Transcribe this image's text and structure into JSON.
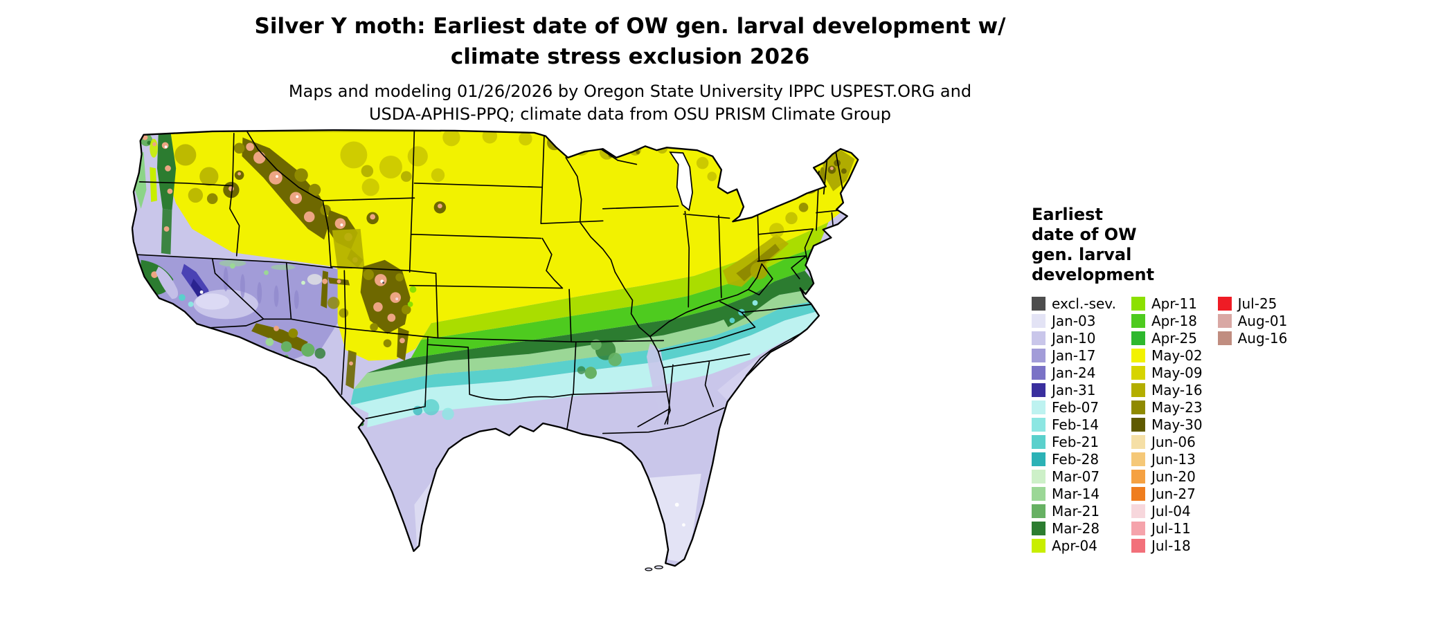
{
  "title": {
    "text": "Silver Y moth: Earliest date of OW gen. larval development w/\nclimate stress exclusion 2026"
  },
  "subtitle": {
    "text": "Maps and modeling 01/26/2026 by Oregon State University IPPC USPEST.ORG and\nUSDA-APHIS-PPQ; climate data from OSU PRISM Climate Group"
  },
  "map": {
    "region": "Continental United States (lower 48 states)",
    "background": "#ffffff",
    "state_border_color": "#000000",
    "water_color": "#ffffff"
  },
  "legend": {
    "title": "Earliest\ndate of OW\ngen. larval\ndevelopment",
    "columns": [
      {
        "entries": [
          {
            "label": "excl.-sev.",
            "color": "#4d4d4d"
          },
          {
            "label": "Jan-03",
            "color": "#e3e3f5"
          },
          {
            "label": "Jan-10",
            "color": "#c9c6ea"
          },
          {
            "label": "Jan-17",
            "color": "#a29cd8"
          },
          {
            "label": "Jan-24",
            "color": "#7a72c6"
          },
          {
            "label": "Jan-31",
            "color": "#3a2f9e"
          },
          {
            "label": "Feb-07",
            "color": "#bdf2f0"
          },
          {
            "label": "Feb-14",
            "color": "#8ce6e2"
          },
          {
            "label": "Feb-21",
            "color": "#5ad0cc"
          },
          {
            "label": "Feb-28",
            "color": "#2cb2b6"
          },
          {
            "label": "Mar-07",
            "color": "#cdf0c8"
          },
          {
            "label": "Mar-14",
            "color": "#9bd796"
          },
          {
            "label": "Mar-21",
            "color": "#67b163"
          },
          {
            "label": "Mar-28",
            "color": "#2c7c30"
          },
          {
            "label": "Apr-04",
            "color": "#c8ee00"
          }
        ]
      },
      {
        "entries": [
          {
            "label": "Apr-11",
            "color": "#8ce000"
          },
          {
            "label": "Apr-18",
            "color": "#4ecb1f"
          },
          {
            "label": "Apr-25",
            "color": "#2eb82e"
          },
          {
            "label": "May-02",
            "color": "#f2f200"
          },
          {
            "label": "May-09",
            "color": "#d6d400"
          },
          {
            "label": "May-16",
            "color": "#b3ae00"
          },
          {
            "label": "May-23",
            "color": "#8f8a00"
          },
          {
            "label": "May-30",
            "color": "#5f5a00"
          },
          {
            "label": "Jun-06",
            "color": "#f5dfa6"
          },
          {
            "label": "Jun-13",
            "color": "#f5c878"
          },
          {
            "label": "Jun-20",
            "color": "#f5a142"
          },
          {
            "label": "Jun-27",
            "color": "#ef7d1e"
          },
          {
            "label": "Jul-04",
            "color": "#f7d7dc"
          },
          {
            "label": "Jul-11",
            "color": "#f5a3ab"
          },
          {
            "label": "Jul-18",
            "color": "#f2707a"
          }
        ]
      },
      {
        "entries": [
          {
            "label": "Jul-25",
            "color": "#ef1c25"
          },
          {
            "label": "Aug-01",
            "color": "#d9a8a4"
          },
          {
            "label": "Aug-16",
            "color": "#c08d80"
          }
        ]
      }
    ]
  }
}
